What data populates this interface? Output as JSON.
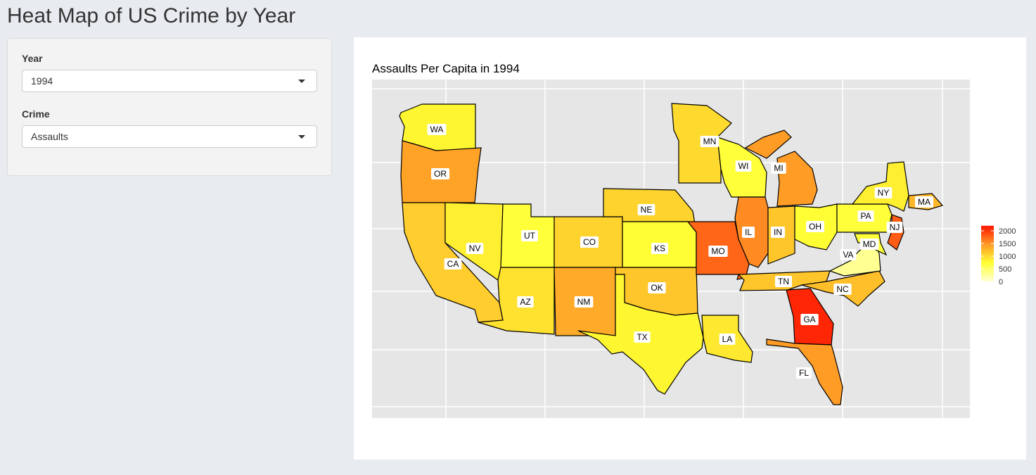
{
  "header": {
    "title": "Heat Map of US Crime by Year"
  },
  "sidebar": {
    "year": {
      "label": "Year",
      "value": "1994"
    },
    "crime": {
      "label": "Crime",
      "value": "Assaults"
    }
  },
  "chart_data": {
    "type": "choropleth",
    "title": "Assaults Per Capita in 1994",
    "regions": [
      "WA",
      "OR",
      "CA",
      "NV",
      "UT",
      "AZ",
      "CO",
      "NM",
      "NE",
      "KS",
      "OK",
      "TX",
      "MN",
      "WI",
      "MI",
      "IL",
      "IN",
      "OH",
      "MO",
      "LA",
      "TN",
      "GA",
      "FL",
      "NC",
      "VA",
      "MD",
      "PA",
      "NY",
      "NJ",
      "MA"
    ],
    "values": [
      800,
      1400,
      1100,
      850,
      700,
      950,
      1050,
      1350,
      1050,
      750,
      1150,
      800,
      1000,
      700,
      1450,
      1550,
      1150,
      750,
      1750,
      900,
      1150,
      2100,
      1450,
      1200,
      300,
      700,
      700,
      850,
      1800,
      1250
    ],
    "colorbar": {
      "lim": [
        0,
        2200
      ],
      "ticks": [
        0,
        500,
        1000,
        1500,
        2000
      ],
      "colors": [
        "#ffffd4",
        "#ffff33",
        "#ff9a26",
        "#ff1400"
      ]
    }
  }
}
